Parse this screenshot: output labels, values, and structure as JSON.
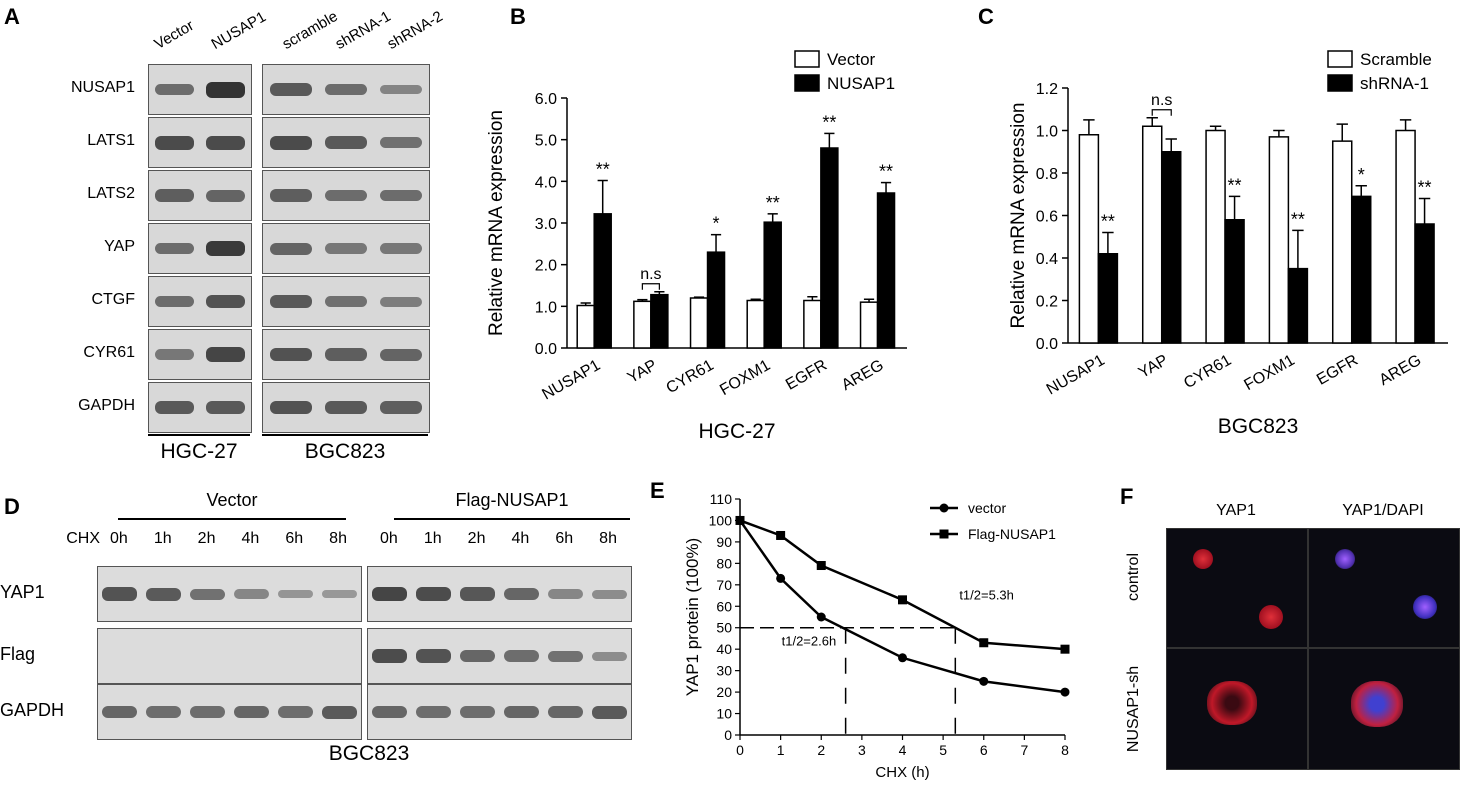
{
  "panelA": {
    "label": "A",
    "lanes": [
      "Vector",
      "NUSAP1",
      "scramble",
      "shRNA-1",
      "shRNA-2"
    ],
    "rows": [
      "NUSAP1",
      "LATS1",
      "LATS2",
      "YAP",
      "CTGF",
      "CYR61",
      "GAPDH"
    ],
    "groups": [
      "HGC-27",
      "BGC823"
    ],
    "intensity": [
      [
        [
          0.55,
          1.0
        ],
        [
          0.7,
          0.55,
          0.35
        ]
      ],
      [
        [
          0.8,
          0.8
        ],
        [
          0.8,
          0.7,
          0.5
        ]
      ],
      [
        [
          0.65,
          0.6
        ],
        [
          0.65,
          0.55,
          0.55
        ]
      ],
      [
        [
          0.55,
          0.95
        ],
        [
          0.6,
          0.45,
          0.45
        ]
      ],
      [
        [
          0.55,
          0.75
        ],
        [
          0.7,
          0.5,
          0.4
        ]
      ],
      [
        [
          0.45,
          0.85
        ],
        [
          0.75,
          0.65,
          0.6
        ]
      ],
      [
        [
          0.7,
          0.7
        ],
        [
          0.75,
          0.7,
          0.65
        ]
      ]
    ]
  },
  "panelB": {
    "label": "B",
    "chart_data": {
      "type": "bar",
      "categories": [
        "NUSAP1",
        "YAP",
        "CYR61",
        "FOXM1",
        "EGFR",
        "AREG"
      ],
      "series": [
        {
          "name": "Vector",
          "values": [
            1.02,
            1.12,
            1.2,
            1.14,
            1.14,
            1.1
          ],
          "errors": [
            0.06,
            0.04,
            0.02,
            0.03,
            0.09,
            0.07
          ],
          "fill": "#ffffff"
        },
        {
          "name": "NUSAP1",
          "values": [
            3.22,
            1.28,
            2.3,
            3.02,
            4.8,
            3.72
          ],
          "errors": [
            0.8,
            0.07,
            0.42,
            0.2,
            0.35,
            0.25
          ],
          "fill": "#000000"
        }
      ],
      "significance": [
        "**",
        "n.s",
        "*",
        "**",
        "**",
        "**"
      ],
      "ylabel": "Relative mRNA expression",
      "xlabel": "HGC-27",
      "ylim": [
        0,
        6
      ],
      "yticks": [
        "0.0",
        "1.0",
        "2.0",
        "3.0",
        "4.0",
        "5.0",
        "6.0"
      ]
    }
  },
  "panelC": {
    "label": "C",
    "chart_data": {
      "type": "bar",
      "categories": [
        "NUSAP1",
        "YAP",
        "CYR61",
        "FOXM1",
        "EGFR",
        "AREG"
      ],
      "series": [
        {
          "name": "Scramble",
          "values": [
            0.98,
            1.02,
            1.0,
            0.97,
            0.95,
            1.0
          ],
          "errors": [
            0.07,
            0.04,
            0.02,
            0.03,
            0.08,
            0.05
          ],
          "fill": "#ffffff"
        },
        {
          "name": "shRNA-1",
          "values": [
            0.42,
            0.9,
            0.58,
            0.35,
            0.69,
            0.56
          ],
          "errors": [
            0.1,
            0.06,
            0.11,
            0.18,
            0.05,
            0.12
          ],
          "fill": "#000000"
        }
      ],
      "significance": [
        "**",
        "n.s",
        "**",
        "**",
        "*",
        "**"
      ],
      "ylabel": "Relative mRNA expression",
      "xlabel": "BGC823",
      "ylim": [
        0,
        1.2
      ],
      "yticks": [
        "0.0",
        "0.2",
        "0.4",
        "0.6",
        "0.8",
        "1.0",
        "1.2"
      ]
    }
  },
  "panelD": {
    "label": "D",
    "groups": [
      "Vector",
      "Flag-NUSAP1"
    ],
    "cond_label": "CHX",
    "times": [
      "0h",
      "1h",
      "2h",
      "4h",
      "6h",
      "8h"
    ],
    "rows": [
      "YAP1",
      "Flag",
      "GAPDH"
    ],
    "cell_line": "BGC823",
    "intensity": [
      [
        [
          0.75,
          0.7,
          0.5,
          0.35,
          0.22,
          0.2
        ],
        [
          0.85,
          0.8,
          0.72,
          0.6,
          0.35,
          0.3
        ]
      ],
      [
        [
          0,
          0,
          0,
          0,
          0,
          0
        ],
        [
          0.8,
          0.75,
          0.6,
          0.55,
          0.5,
          0.3
        ]
      ],
      [
        [
          0.6,
          0.55,
          0.55,
          0.6,
          0.55,
          0.7
        ],
        [
          0.6,
          0.55,
          0.55,
          0.6,
          0.6,
          0.7
        ]
      ]
    ]
  },
  "panelE": {
    "label": "E",
    "chart_data": {
      "type": "line",
      "series": [
        {
          "name": "vector",
          "marker": "circle",
          "x": [
            0,
            1,
            2,
            4,
            6,
            8
          ],
          "y": [
            100,
            73,
            55,
            36,
            25,
            20
          ]
        },
        {
          "name": "Flag-NUSAP1",
          "marker": "square",
          "x": [
            0,
            1,
            2,
            4,
            6,
            8
          ],
          "y": [
            100,
            93,
            79,
            63,
            43,
            40
          ]
        }
      ],
      "ylabel": "YAP1 protein (100%)",
      "xlabel": "CHX (h)",
      "xlim": [
        0,
        8
      ],
      "ylim": [
        0,
        110
      ],
      "xticks": [
        "0",
        "1",
        "2",
        "3",
        "4",
        "5",
        "6",
        "7",
        "8"
      ],
      "yticks": [
        "0",
        "10",
        "20",
        "30",
        "40",
        "50",
        "60",
        "70",
        "80",
        "90",
        "100",
        "110"
      ],
      "half_life_line": 50,
      "annotations": [
        {
          "text": "t1/2=2.6h",
          "x": 2.6
        },
        {
          "text": "t1/2=5.3h",
          "x": 5.3
        }
      ]
    }
  },
  "panelF": {
    "label": "F",
    "columns": [
      "YAP1",
      "YAP1/DAPI"
    ],
    "rows": [
      "control",
      "NUSAP1-sh"
    ]
  }
}
